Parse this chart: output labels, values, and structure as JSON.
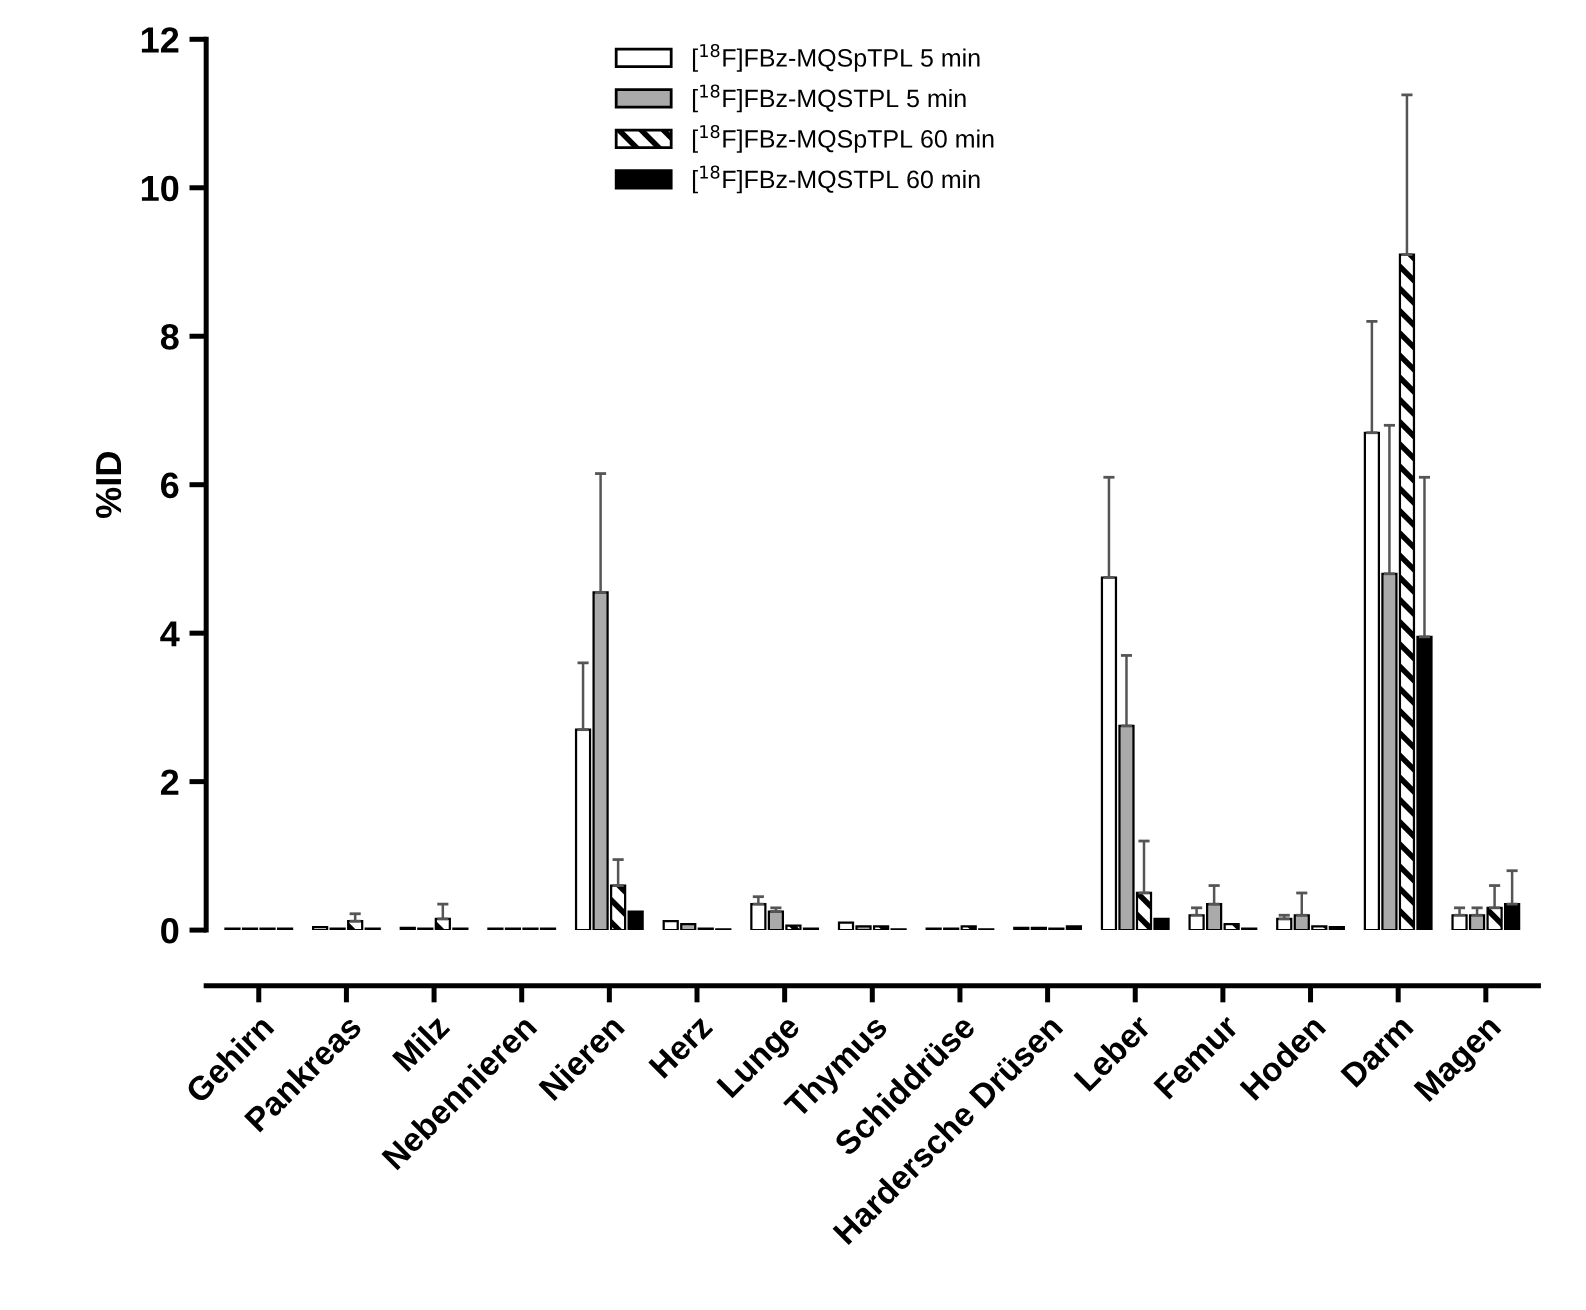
{
  "chart_data": {
    "type": "bar",
    "ylabel": "%ID",
    "categories": [
      "Gehirn",
      "Pankreas",
      "Milz",
      "Nebennieren",
      "Nieren",
      "Herz",
      "Lunge",
      "Thymus",
      "Schiddrüse",
      "Hardersche Drüsen",
      "Leber",
      "Femur",
      "Hoden",
      "Darm",
      "Magen"
    ],
    "series": [
      {
        "name": "[$^{18}$F]FBz-MQSpTPL 5 min",
        "color": "#ffffff",
        "values": [
          0.02,
          0.04,
          0.03,
          0.02,
          2.7,
          0.12,
          0.35,
          0.1,
          0.02,
          0.03,
          4.75,
          0.2,
          0.15,
          6.7,
          0.2
        ],
        "errors": [
          null,
          null,
          null,
          null,
          [
            2.7,
            3.6
          ],
          null,
          [
            0.35,
            0.45
          ],
          null,
          null,
          null,
          [
            4.75,
            6.1
          ],
          [
            0.2,
            0.3
          ],
          [
            0.15,
            0.2
          ],
          [
            6.7,
            8.2
          ],
          [
            0.2,
            0.3
          ]
        ]
      },
      {
        "name": "[$^{18}$F]FBz-MQSTPL 5 min",
        "color": "#aaaaaa",
        "values": [
          0.02,
          0.02,
          0.02,
          0.02,
          4.55,
          0.08,
          0.25,
          0.05,
          0.02,
          0.03,
          2.75,
          0.35,
          0.2,
          4.8,
          0.2
        ],
        "errors": [
          null,
          null,
          null,
          null,
          [
            4.55,
            6.15
          ],
          null,
          [
            0.25,
            0.3
          ],
          null,
          null,
          null,
          [
            2.75,
            3.7
          ],
          [
            0.35,
            0.6
          ],
          [
            0.2,
            0.5
          ],
          [
            4.8,
            6.8
          ],
          [
            0.2,
            0.3
          ]
        ]
      },
      {
        "name": "[$^{18}$F]FBz-MQSpTPL 60 min",
        "color": "#000000",
        "values": [
          0.02,
          0.12,
          0.15,
          0.02,
          0.6,
          0.02,
          0.06,
          0.05,
          0.05,
          0.02,
          0.5,
          0.08,
          0.05,
          9.1,
          0.3
        ],
        "errors": [
          null,
          [
            0.12,
            0.22
          ],
          [
            0.15,
            0.35
          ],
          null,
          [
            0.6,
            0.95
          ],
          null,
          null,
          null,
          null,
          null,
          [
            0.5,
            1.2
          ],
          null,
          null,
          [
            9.1,
            11.25
          ],
          [
            0.3,
            0.6
          ]
        ]
      },
      {
        "name": "[$^{18}$F]FBz-MQSTPL 60 min",
        "color": "#000000",
        "values": [
          0.02,
          0.02,
          0.02,
          0.02,
          0.25,
          0.01,
          0.02,
          0.01,
          0.01,
          0.05,
          0.15,
          0.02,
          0.04,
          3.95,
          0.35
        ],
        "errors": [
          null,
          null,
          null,
          null,
          null,
          null,
          null,
          null,
          null,
          null,
          null,
          null,
          null,
          [
            3.95,
            6.1
          ],
          [
            0.35,
            0.8
          ]
        ]
      }
    ],
    "ylim": [
      0,
      12
    ],
    "yticks": [
      0,
      2,
      4,
      6,
      8,
      10,
      12
    ],
    "grid": false,
    "legend": "top"
  }
}
